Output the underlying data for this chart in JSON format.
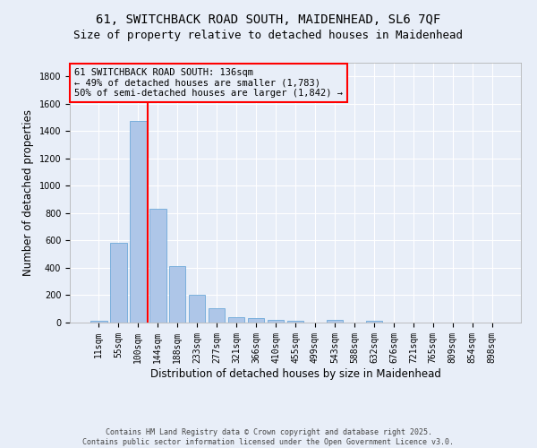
{
  "title_line1": "61, SWITCHBACK ROAD SOUTH, MAIDENHEAD, SL6 7QF",
  "title_line2": "Size of property relative to detached houses in Maidenhead",
  "xlabel": "Distribution of detached houses by size in Maidenhead",
  "ylabel": "Number of detached properties",
  "categories": [
    "11sqm",
    "55sqm",
    "100sqm",
    "144sqm",
    "188sqm",
    "233sqm",
    "277sqm",
    "321sqm",
    "366sqm",
    "410sqm",
    "455sqm",
    "499sqm",
    "543sqm",
    "588sqm",
    "632sqm",
    "676sqm",
    "721sqm",
    "765sqm",
    "809sqm",
    "854sqm",
    "898sqm"
  ],
  "values": [
    15,
    585,
    1475,
    830,
    415,
    200,
    105,
    38,
    30,
    20,
    10,
    0,
    18,
    0,
    15,
    0,
    0,
    0,
    0,
    0,
    0
  ],
  "bar_color": "#aec6e8",
  "bar_edge_color": "#5a9fd4",
  "vline_x": 2.5,
  "vline_color": "red",
  "annotation_text": "61 SWITCHBACK ROAD SOUTH: 136sqm\n← 49% of detached houses are smaller (1,783)\n50% of semi-detached houses are larger (1,842) →",
  "annotation_box_color": "red",
  "ylim": [
    0,
    1900
  ],
  "yticks": [
    0,
    200,
    400,
    600,
    800,
    1000,
    1200,
    1400,
    1600,
    1800
  ],
  "background_color": "#e8eef8",
  "grid_color": "#ffffff",
  "footer_text": "Contains HM Land Registry data © Crown copyright and database right 2025.\nContains public sector information licensed under the Open Government Licence v3.0.",
  "title_fontsize": 10,
  "subtitle_fontsize": 9,
  "axis_label_fontsize": 8.5,
  "tick_fontsize": 7,
  "annotation_fontsize": 7.5,
  "footer_fontsize": 6
}
